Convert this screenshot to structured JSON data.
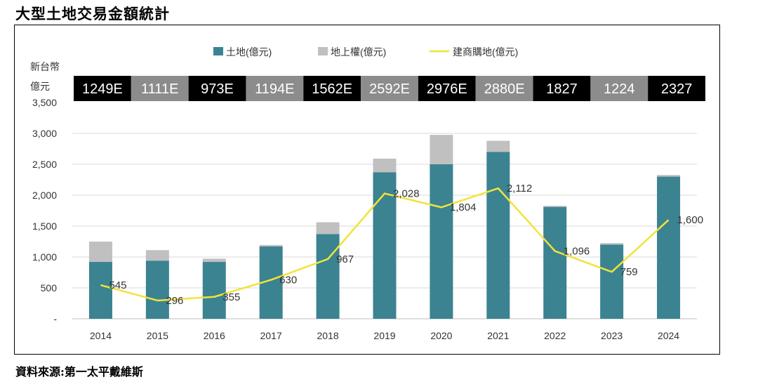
{
  "page_title": "大型土地交易金額統計",
  "source": "資料來源:第一太平戴維斯",
  "colors": {
    "land": "#3b8391",
    "surface_rights": "#c0c0c0",
    "developer": "#f2e33a",
    "grid": "#d9d9d9"
  },
  "chart_data": {
    "type": "bar",
    "title": "",
    "ylabel": "新台幣 億元",
    "ylabel_line1": "新台幣",
    "ylabel_line2": "億元",
    "ylim": [
      0,
      3500
    ],
    "yticks": [
      {
        "value": 0,
        "label": "-"
      },
      {
        "value": 500,
        "label": "500"
      },
      {
        "value": 1000,
        "label": "1,000"
      },
      {
        "value": 1500,
        "label": "1,500"
      },
      {
        "value": 2000,
        "label": "2,000"
      },
      {
        "value": 2500,
        "label": "2,500"
      },
      {
        "value": 3000,
        "label": "3,000"
      },
      {
        "value": 3500,
        "label": "3,500"
      }
    ],
    "categories": [
      "2014",
      "2015",
      "2016",
      "2017",
      "2018",
      "2019",
      "2020",
      "2021",
      "2022",
      "2023",
      "2024"
    ],
    "series": [
      {
        "name": "土地(億元)",
        "kind": "stacked-bar",
        "values": [
          920,
          940,
          920,
          1170,
          1370,
          2370,
          2500,
          2700,
          1810,
          1200,
          2300
        ]
      },
      {
        "name": "地上權(億元)",
        "kind": "stacked-bar",
        "values": [
          329,
          171,
          53,
          24,
          192,
          222,
          476,
          180,
          17,
          24,
          27
        ]
      },
      {
        "name": "建商購地(億元)",
        "kind": "line",
        "values": [
          545,
          296,
          355,
          630,
          967,
          2028,
          1804,
          2112,
          1096,
          759,
          1600
        ],
        "labels": [
          "545",
          "296",
          "355",
          "630",
          "967",
          "2,028",
          "1,804",
          "2,112",
          "1,096",
          "759",
          "1,600"
        ]
      }
    ],
    "totals": [
      "1249E",
      "1111E",
      "973E",
      "1194E",
      "1562E",
      "2592E",
      "2976E",
      "2880E",
      "1827",
      "1224",
      "2327"
    ],
    "legend_position": "top-center",
    "grid": true
  }
}
